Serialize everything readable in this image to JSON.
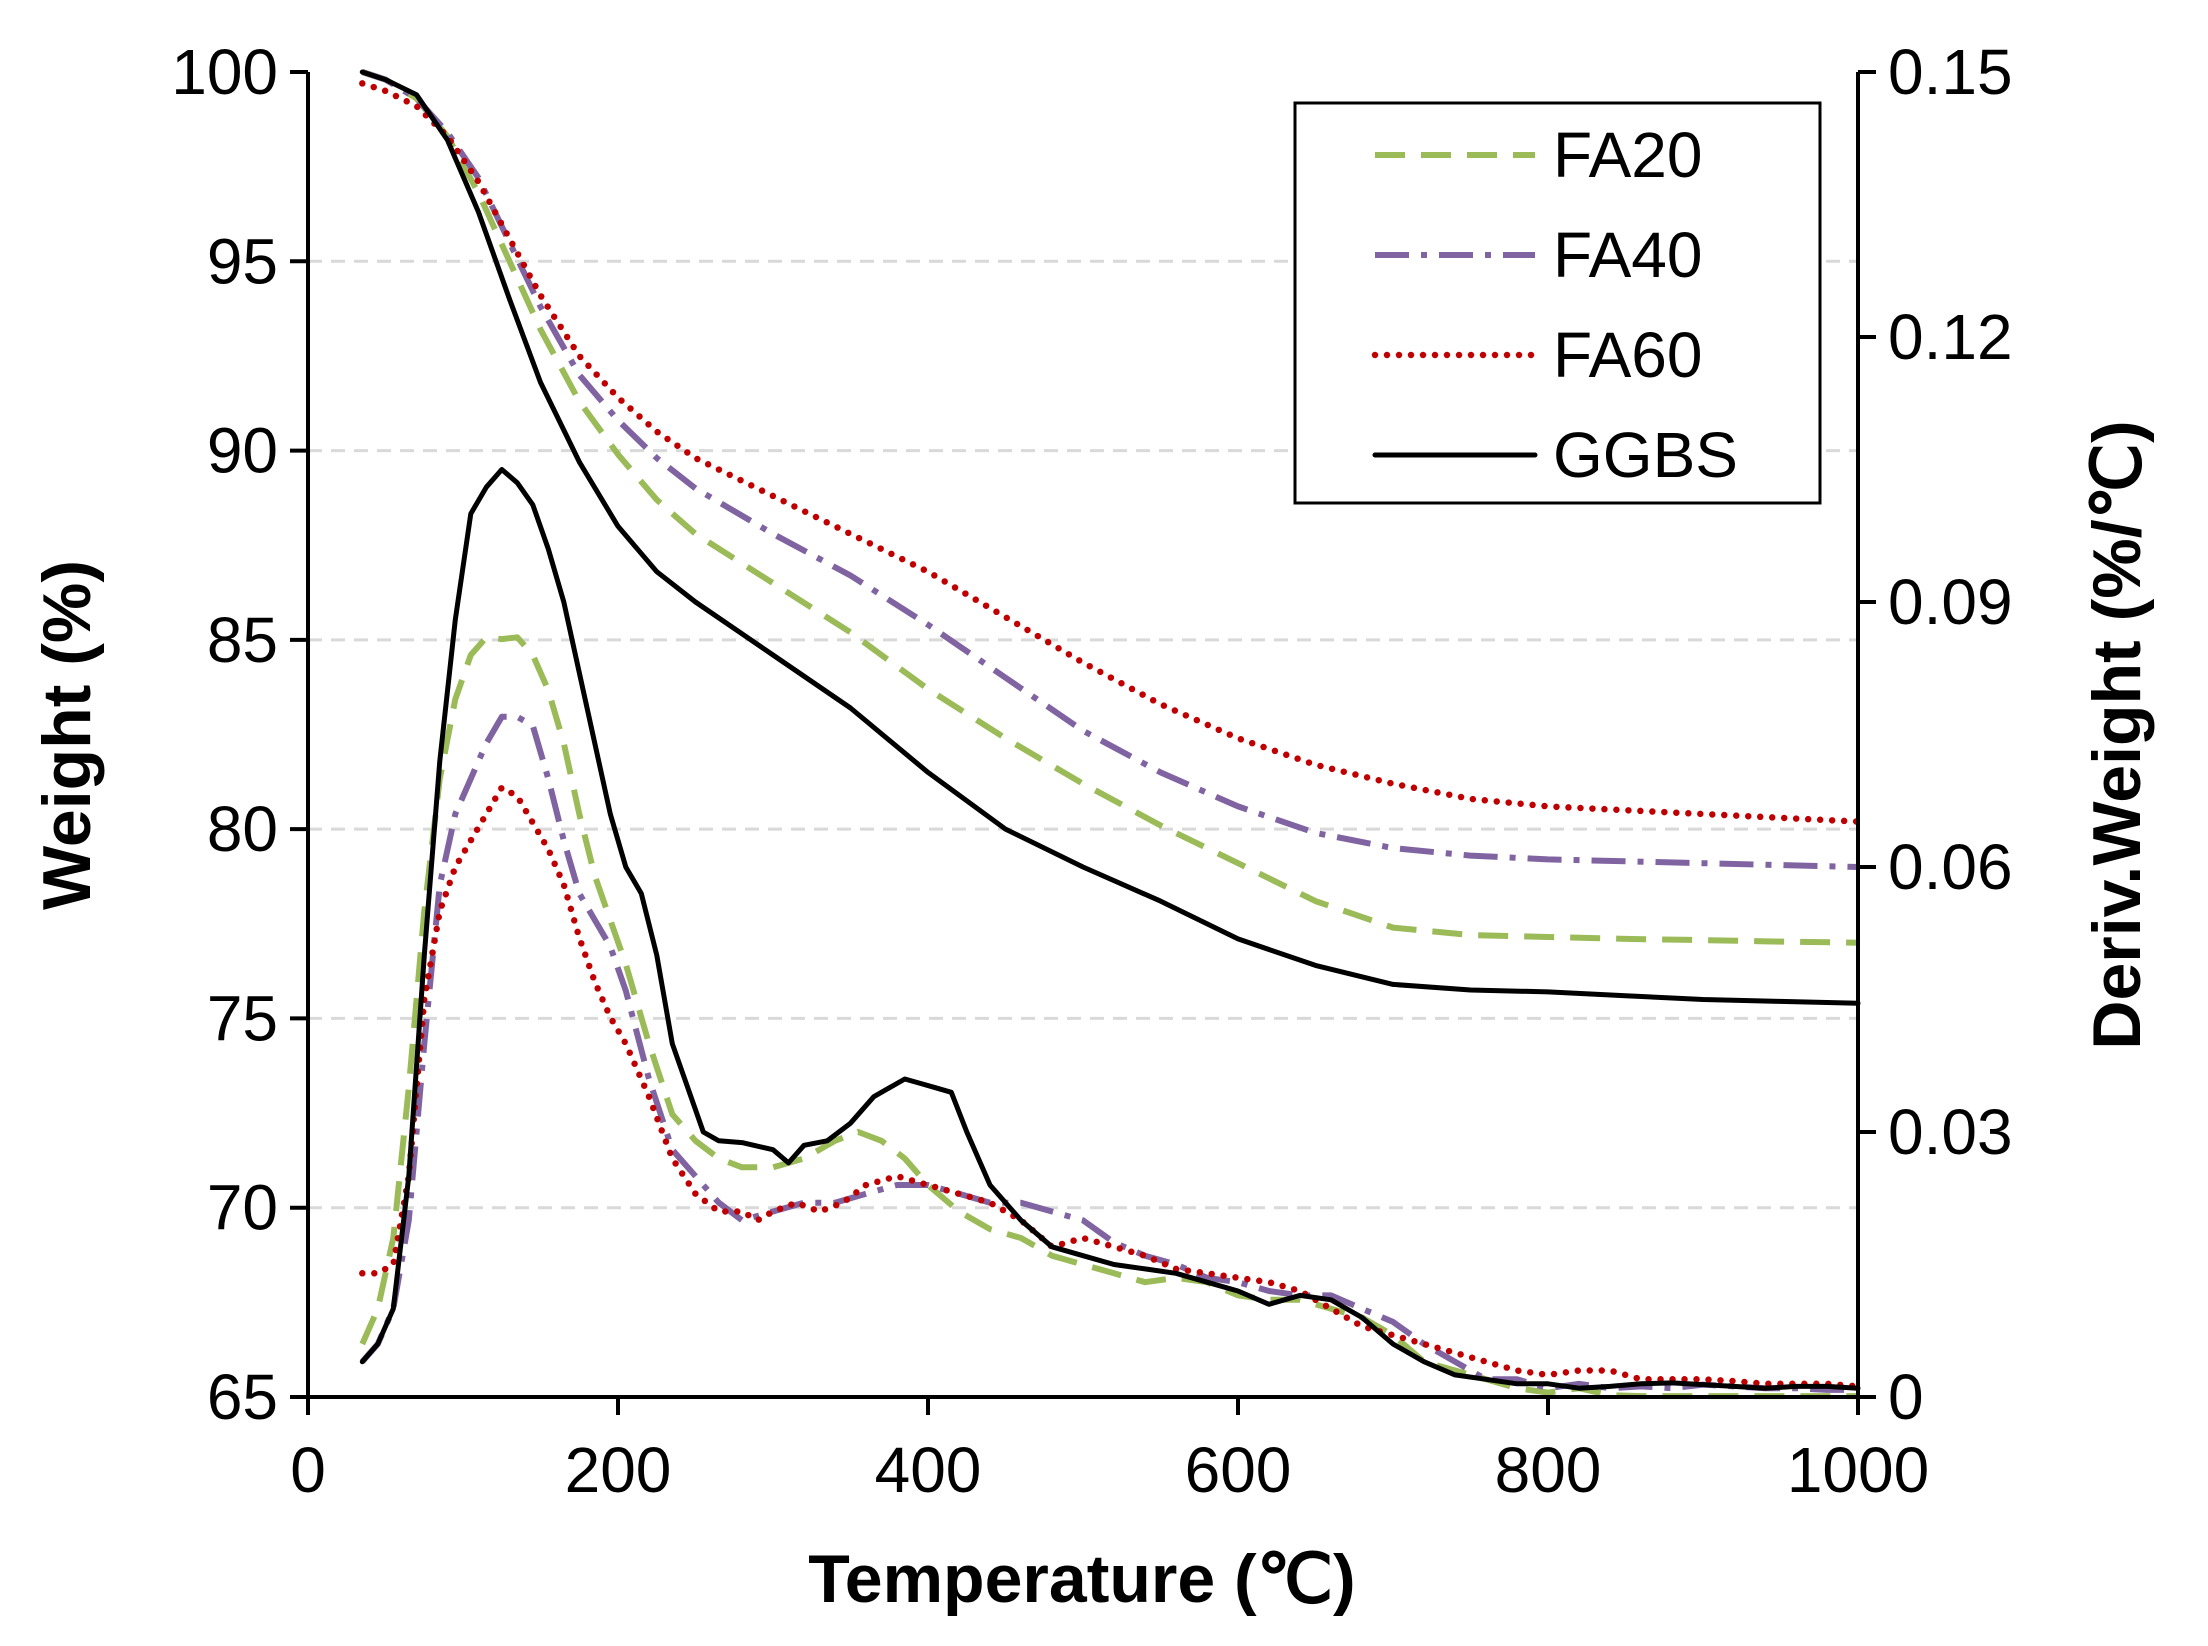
{
  "chart_data": {
    "type": "line",
    "xlabel": "Temperature (℃)",
    "ylabel_left": "Weight (%)",
    "ylabel_right": "Deriv.Weight (%/℃)",
    "xlim": [
      0,
      1000
    ],
    "ylim_left": [
      65,
      100
    ],
    "ylim_right": [
      0,
      0.15
    ],
    "xticks": [
      "0",
      "200",
      "400",
      "600",
      "800",
      "1000"
    ],
    "yticks_left": [
      "65",
      "70",
      "75",
      "80",
      "85",
      "90",
      "95",
      "100"
    ],
    "yticks_right": [
      "0",
      "0.03",
      "0.06",
      "0.09",
      "0.12",
      "0.15"
    ],
    "grid": "horizontal dashed (left axis)",
    "legend_position": "top-right",
    "colors": {
      "FA20": "#9bbb59",
      "FA40": "#8064a2",
      "FA60": "#c00000",
      "GGBS": "#000000"
    },
    "series": [
      {
        "name": "FA20",
        "style": "dashed",
        "weight": {
          "x": [
            35,
            50,
            70,
            90,
            110,
            130,
            150,
            175,
            200,
            225,
            250,
            300,
            350,
            400,
            450,
            500,
            550,
            600,
            650,
            700,
            750,
            800,
            850,
            900,
            950,
            1000
          ],
          "y": [
            100,
            99.8,
            99.3,
            98.3,
            96.8,
            95,
            93.2,
            91.3,
            89.9,
            88.7,
            87.8,
            86.5,
            85.2,
            83.7,
            82.4,
            81.2,
            80.1,
            79.1,
            78.1,
            77.4,
            77.2,
            77.15,
            77.1,
            77.07,
            77.03,
            77
          ]
        },
        "deriv": {
          "x": [
            35,
            45,
            55,
            65,
            75,
            85,
            95,
            105,
            115,
            125,
            135,
            145,
            155,
            165,
            175,
            185,
            195,
            205,
            220,
            235,
            250,
            265,
            280,
            300,
            320,
            340,
            355,
            370,
            385,
            400,
            420,
            440,
            460,
            480,
            500,
            520,
            540,
            560,
            580,
            600,
            620,
            640,
            660,
            680,
            700,
            720,
            740,
            760,
            780,
            800,
            820,
            840,
            860,
            880,
            900,
            920,
            940,
            960,
            980,
            1000
          ],
          "y": [
            0.006,
            0.01,
            0.018,
            0.035,
            0.055,
            0.07,
            0.079,
            0.084,
            0.086,
            0.0858,
            0.086,
            0.084,
            0.08,
            0.074,
            0.066,
            0.059,
            0.054,
            0.049,
            0.04,
            0.032,
            0.029,
            0.027,
            0.026,
            0.026,
            0.027,
            0.029,
            0.03,
            0.029,
            0.027,
            0.024,
            0.021,
            0.019,
            0.018,
            0.016,
            0.015,
            0.014,
            0.013,
            0.0135,
            0.013,
            0.0115,
            0.011,
            0.011,
            0.01,
            0.009,
            0.007,
            0.004,
            0.003,
            0.002,
            0.001,
            0.0005,
            0.001,
            0.0002,
            0.0001,
            0.0001,
            0.0001,
            0.0001,
            0.0001,
            0.0001,
            0.0001,
            0.0001
          ]
        }
      },
      {
        "name": "FA40",
        "style": "dash-dot",
        "weight": {
          "x": [
            35,
            50,
            70,
            90,
            110,
            130,
            150,
            175,
            200,
            225,
            250,
            300,
            350,
            400,
            450,
            500,
            550,
            600,
            650,
            700,
            750,
            800,
            850,
            900,
            950,
            1000
          ],
          "y": [
            100,
            99.8,
            99.3,
            98.4,
            97.2,
            95.5,
            93.8,
            92,
            90.8,
            89.8,
            89,
            87.8,
            86.7,
            85.4,
            84,
            82.6,
            81.5,
            80.6,
            79.9,
            79.5,
            79.3,
            79.2,
            79.15,
            79.1,
            79.05,
            79
          ]
        },
        "deriv": {
          "x": [
            35,
            45,
            55,
            65,
            75,
            85,
            95,
            105,
            115,
            125,
            135,
            145,
            155,
            165,
            175,
            185,
            195,
            205,
            220,
            235,
            250,
            265,
            280,
            300,
            320,
            340,
            360,
            380,
            400,
            420,
            440,
            460,
            480,
            500,
            520,
            540,
            560,
            580,
            600,
            620,
            640,
            660,
            680,
            700,
            720,
            740,
            760,
            780,
            800,
            820,
            840,
            860,
            880,
            900,
            920,
            940,
            960,
            980,
            1000
          ],
          "y": [
            0.004,
            0.006,
            0.01,
            0.02,
            0.04,
            0.058,
            0.066,
            0.07,
            0.074,
            0.077,
            0.077,
            0.076,
            0.07,
            0.063,
            0.057,
            0.054,
            0.051,
            0.046,
            0.036,
            0.028,
            0.025,
            0.022,
            0.02,
            0.021,
            0.022,
            0.022,
            0.023,
            0.024,
            0.024,
            0.023,
            0.022,
            0.022,
            0.021,
            0.02,
            0.0175,
            0.016,
            0.015,
            0.0135,
            0.013,
            0.012,
            0.0115,
            0.0115,
            0.01,
            0.0085,
            0.006,
            0.004,
            0.002,
            0.002,
            0.001,
            0.0015,
            0.001,
            0.0012,
            0.001,
            0.0014,
            0.0012,
            0.001,
            0.001,
            0.0008,
            0.0008
          ]
        }
      },
      {
        "name": "FA60",
        "style": "dotted",
        "weight": {
          "x": [
            35,
            50,
            70,
            90,
            110,
            130,
            150,
            175,
            200,
            225,
            250,
            300,
            350,
            400,
            450,
            500,
            550,
            600,
            650,
            700,
            750,
            800,
            850,
            900,
            950,
            1000
          ],
          "y": [
            99.7,
            99.5,
            99.1,
            98.3,
            97.1,
            95.6,
            94.1,
            92.5,
            91.4,
            90.5,
            89.8,
            88.8,
            87.8,
            86.8,
            85.6,
            84.4,
            83.3,
            82.4,
            81.7,
            81.2,
            80.8,
            80.6,
            80.5,
            80.4,
            80.3,
            80.2
          ]
        },
        "deriv": {
          "x": [
            35,
            45,
            55,
            65,
            75,
            85,
            95,
            105,
            115,
            125,
            135,
            145,
            155,
            165,
            175,
            185,
            195,
            205,
            220,
            235,
            250,
            265,
            280,
            290,
            300,
            315,
            330,
            345,
            360,
            380,
            400,
            420,
            440,
            460,
            480,
            500,
            520,
            540,
            560,
            580,
            600,
            620,
            640,
            660,
            680,
            700,
            720,
            740,
            760,
            780,
            800,
            820,
            840,
            860,
            880,
            900,
            920,
            940,
            960,
            980,
            1000
          ],
          "y": [
            0.014,
            0.014,
            0.015,
            0.025,
            0.045,
            0.055,
            0.06,
            0.063,
            0.066,
            0.069,
            0.068,
            0.065,
            0.062,
            0.058,
            0.052,
            0.047,
            0.043,
            0.04,
            0.034,
            0.027,
            0.023,
            0.021,
            0.021,
            0.02,
            0.021,
            0.022,
            0.021,
            0.022,
            0.024,
            0.025,
            0.024,
            0.023,
            0.022,
            0.02,
            0.017,
            0.018,
            0.017,
            0.016,
            0.0145,
            0.014,
            0.0135,
            0.013,
            0.012,
            0.01,
            0.008,
            0.007,
            0.006,
            0.005,
            0.004,
            0.003,
            0.0025,
            0.003,
            0.003,
            0.002,
            0.002,
            0.002,
            0.0018,
            0.0015,
            0.0015,
            0.0015,
            0.0012
          ]
        }
      },
      {
        "name": "GGBS",
        "style": "solid",
        "weight": {
          "x": [
            35,
            50,
            70,
            90,
            110,
            130,
            150,
            175,
            200,
            225,
            250,
            300,
            350,
            400,
            450,
            500,
            550,
            600,
            650,
            700,
            750,
            800,
            850,
            900,
            950,
            1000
          ],
          "y": [
            100,
            99.8,
            99.4,
            98.2,
            96.3,
            94,
            91.8,
            89.7,
            88,
            86.8,
            86,
            84.6,
            83.2,
            81.5,
            80,
            79,
            78.1,
            77.1,
            76.4,
            75.9,
            75.75,
            75.7,
            75.6,
            75.5,
            75.45,
            75.4
          ]
        },
        "deriv": {
          "x": [
            35,
            45,
            55,
            65,
            75,
            85,
            95,
            105,
            115,
            125,
            135,
            145,
            155,
            165,
            175,
            185,
            195,
            205,
            215,
            225,
            235,
            245,
            255,
            265,
            280,
            300,
            310,
            320,
            335,
            350,
            365,
            375,
            385,
            395,
            405,
            415,
            425,
            440,
            460,
            480,
            500,
            520,
            540,
            560,
            580,
            600,
            620,
            640,
            660,
            680,
            700,
            720,
            740,
            760,
            780,
            800,
            820,
            840,
            860,
            880,
            900,
            920,
            940,
            960,
            980,
            1000
          ],
          "y": [
            0.004,
            0.006,
            0.01,
            0.025,
            0.05,
            0.072,
            0.088,
            0.1,
            0.103,
            0.105,
            0.1035,
            0.101,
            0.096,
            0.09,
            0.082,
            0.074,
            0.066,
            0.06,
            0.057,
            0.05,
            0.04,
            0.035,
            0.03,
            0.029,
            0.0288,
            0.028,
            0.0265,
            0.0285,
            0.029,
            0.031,
            0.034,
            0.035,
            0.036,
            0.0355,
            0.035,
            0.0345,
            0.03,
            0.024,
            0.02,
            0.017,
            0.016,
            0.015,
            0.0145,
            0.014,
            0.013,
            0.012,
            0.0105,
            0.0115,
            0.011,
            0.009,
            0.006,
            0.004,
            0.0025,
            0.002,
            0.0015,
            0.0015,
            0.001,
            0.0012,
            0.0015,
            0.0016,
            0.0014,
            0.0012,
            0.001,
            0.0012,
            0.0012,
            0.001
          ]
        }
      }
    ]
  }
}
